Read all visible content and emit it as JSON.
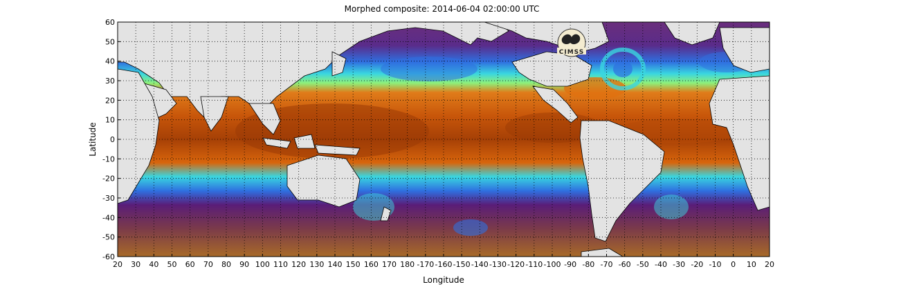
{
  "title": "Morphed composite: 2014-06-04 02:00:00 UTC",
  "map": {
    "x_axis_label": "Longitude",
    "y_axis_label": "Latitude",
    "x_ticks": [
      "20",
      "30",
      "40",
      "50",
      "60",
      "70",
      "80",
      "90",
      "100",
      "110",
      "120",
      "130",
      "140",
      "150",
      "160",
      "170",
      "180",
      "-170",
      "-160",
      "-150",
      "-140",
      "-130",
      "-120",
      "-110",
      "-100",
      "-90",
      "-80",
      "-70",
      "-60",
      "-50",
      "-40",
      "-30",
      "-20",
      "-10",
      "0",
      "10",
      "20"
    ],
    "y_ticks": [
      "60",
      "50",
      "40",
      "30",
      "20",
      "10",
      "0",
      "-10",
      "-20",
      "-30",
      "-40",
      "-50",
      "-60"
    ],
    "logo_text": "CIMSS",
    "colors": {
      "dry_purple": "#5a1d78",
      "low_blue": "#2f6fe0",
      "mid_cyan": "#39d6e0",
      "mid_green": "#8ef07a",
      "moist_orange": "#d8650c",
      "very_moist_brown": "#8a3305",
      "land_gray": "#e3e3e3"
    }
  }
}
